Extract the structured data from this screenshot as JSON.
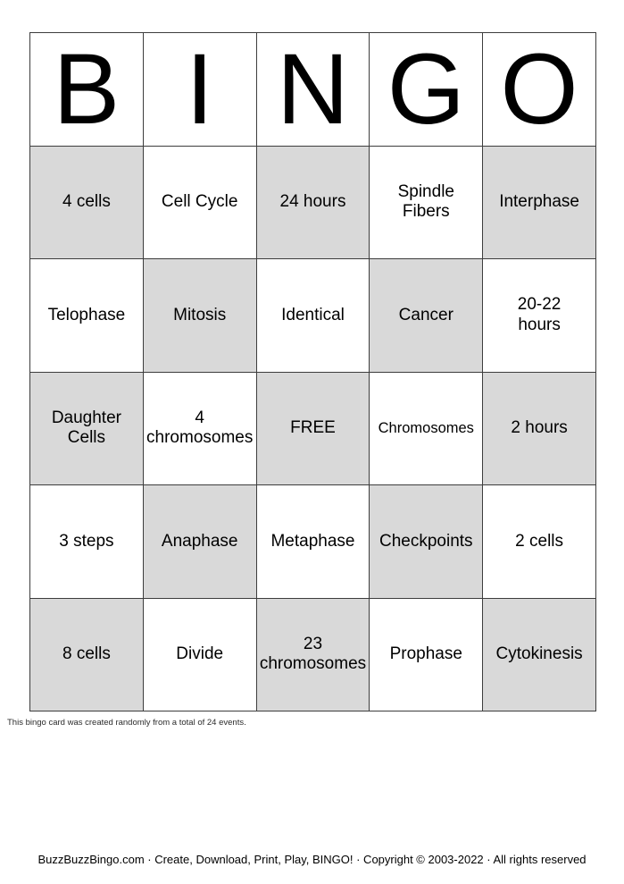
{
  "card": {
    "header_letters": [
      "B",
      "I",
      "N",
      "G",
      "O"
    ],
    "rows": [
      [
        {
          "label": "4 cells",
          "shaded": true
        },
        {
          "label": "Cell Cycle",
          "shaded": false
        },
        {
          "label": "24 hours",
          "shaded": true
        },
        {
          "label": "Spindle\nFibers",
          "shaded": false
        },
        {
          "label": "Interphase",
          "shaded": true
        }
      ],
      [
        {
          "label": "Telophase",
          "shaded": false
        },
        {
          "label": "Mitosis",
          "shaded": true
        },
        {
          "label": "Identical",
          "shaded": false
        },
        {
          "label": "Cancer",
          "shaded": true
        },
        {
          "label": "20-22\nhours",
          "shaded": false
        }
      ],
      [
        {
          "label": "Daughter\nCells",
          "shaded": true
        },
        {
          "label": "4\nchromosomes",
          "shaded": false
        },
        {
          "label": "FREE",
          "shaded": true
        },
        {
          "label": "Chromosomes",
          "shaded": false,
          "small": true
        },
        {
          "label": "2 hours",
          "shaded": true
        }
      ],
      [
        {
          "label": "3 steps",
          "shaded": false
        },
        {
          "label": "Anaphase",
          "shaded": true
        },
        {
          "label": "Metaphase",
          "shaded": false
        },
        {
          "label": "Checkpoints",
          "shaded": true
        },
        {
          "label": "2 cells",
          "shaded": false
        }
      ],
      [
        {
          "label": "8 cells",
          "shaded": true
        },
        {
          "label": "Divide",
          "shaded": false
        },
        {
          "label": "23\nchromosomes",
          "shaded": true
        },
        {
          "label": "Prophase",
          "shaded": false
        },
        {
          "label": "Cytokinesis",
          "shaded": true
        }
      ]
    ]
  },
  "note": "This bingo card was created randomly from a total of 24 events.",
  "footer": "BuzzBuzzBingo.com · Create, Download, Print, Play, BINGO! · Copyright © 2003-2022 · All rights reserved",
  "colors": {
    "page_background": "#ffffff",
    "shaded_cell": "#d9d9d9",
    "grid_border": "#3d3d3d",
    "text": "#000000"
  }
}
